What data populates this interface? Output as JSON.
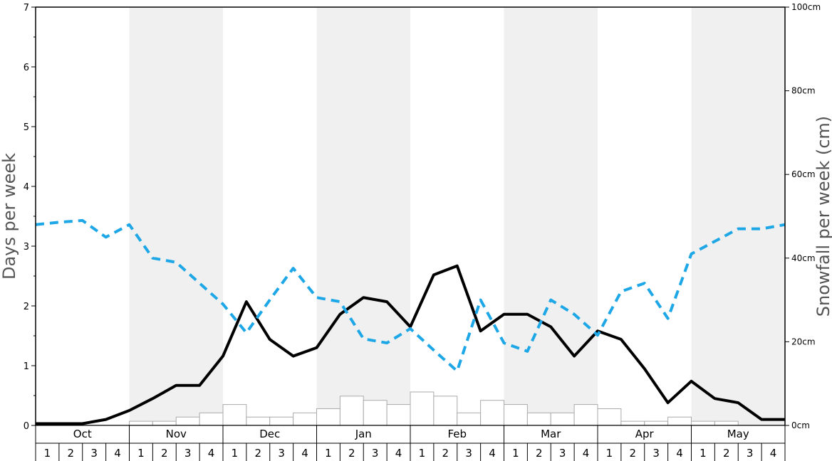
{
  "chart_data": {
    "type": "bar+line",
    "left_axis": {
      "label": "Days per week",
      "ylim": [
        0,
        7
      ],
      "ticks": [
        "0",
        "1",
        "2",
        "3",
        "4",
        "5",
        "6",
        "7"
      ]
    },
    "right_axis": {
      "label": "Snowfall per week (cm)",
      "ylim": [
        0,
        100
      ],
      "ticks": [
        "0cm",
        "20cm",
        "40cm",
        "60cm",
        "80cm",
        "100cm"
      ]
    },
    "months": [
      "Oct",
      "Nov",
      "Dec",
      "Jan",
      "Feb",
      "Mar",
      "Apr",
      "May"
    ],
    "week_labels": [
      "1",
      "2",
      "3",
      "4"
    ],
    "shaded_months": [
      "Nov",
      "Jan",
      "Mar",
      "May"
    ],
    "colors": {
      "shade": "#f0f0f0",
      "solid_line": "#000000",
      "dashed_line": "#1ea7e6",
      "bar_stroke": "#aaaaaa",
      "bar_fill": "#ffffff"
    },
    "series": [
      {
        "kind": "bar",
        "axis": "right",
        "values": [
          0,
          0,
          0,
          0,
          1,
          1,
          2,
          3,
          5,
          2,
          2,
          3,
          4,
          7,
          6,
          5,
          8,
          7,
          3,
          6,
          5,
          3,
          3,
          5,
          4,
          1,
          1,
          2,
          1,
          1,
          0,
          0
        ]
      },
      {
        "kind": "line",
        "style": "solid",
        "axis": "left",
        "values": [
          0.03,
          0.03,
          0.03,
          0.1,
          0.25,
          0.45,
          0.67,
          0.67,
          1.16,
          2.07,
          1.44,
          1.16,
          1.3,
          1.86,
          2.14,
          2.07,
          1.65,
          2.52,
          2.67,
          1.58,
          1.86,
          1.86,
          1.65,
          1.16,
          1.58,
          1.44,
          0.95,
          0.38,
          0.74,
          0.45,
          0.38,
          0.1,
          0.1
        ]
      },
      {
        "kind": "line",
        "style": "dashed",
        "axis": "left",
        "values": [
          3.36,
          3.4,
          3.43,
          3.15,
          3.36,
          2.8,
          2.73,
          2.38,
          2.03,
          1.55,
          2.1,
          2.63,
          2.14,
          2.07,
          1.45,
          1.38,
          1.62,
          1.26,
          0.91,
          2.1,
          1.38,
          1.24,
          2.1,
          1.86,
          1.51,
          2.24,
          2.38,
          1.79,
          2.87,
          3.08,
          3.29,
          3.29,
          3.36
        ]
      }
    ]
  }
}
